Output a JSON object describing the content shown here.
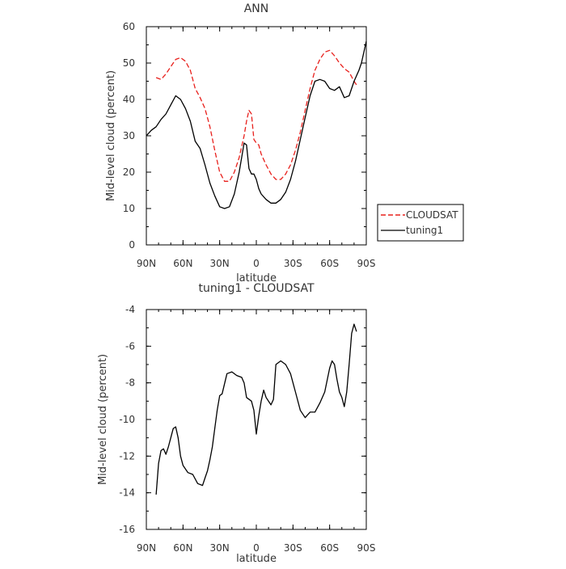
{
  "chart_data": [
    {
      "type": "line",
      "title": "ANN",
      "xlabel": "latitude",
      "ylabel": "Mid-level cloud (percent)",
      "xlim": [
        90,
        -90
      ],
      "ylim": [
        0,
        60
      ],
      "x_ticks": [
        90,
        60,
        30,
        0,
        -30,
        -60,
        -90
      ],
      "x_tick_labels": [
        "90N",
        "60N",
        "30N",
        "0",
        "30S",
        "60S",
        "90S"
      ],
      "y_ticks": [
        0,
        10,
        20,
        30,
        40,
        50,
        60
      ],
      "y_tick_labels": [
        "0",
        "10",
        "20",
        "30",
        "40",
        "50",
        "60"
      ],
      "grid": false,
      "legend": {
        "placement": "right",
        "entries": [
          "CLOUDSAT",
          "tuning1"
        ]
      },
      "series": [
        {
          "name": "CLOUDSAT",
          "color": "#e8201c",
          "dash": "dashed",
          "x": [
            82,
            78,
            74,
            70,
            66,
            62,
            58,
            54,
            50,
            46,
            42,
            38,
            34,
            30,
            26,
            22,
            18,
            14,
            10,
            8,
            6,
            4,
            2,
            0,
            -2,
            -4,
            -8,
            -12,
            -16,
            -20,
            -24,
            -28,
            -32,
            -36,
            -40,
            -44,
            -48,
            -52,
            -56,
            -60,
            -64,
            -68,
            -72,
            -76,
            -80,
            -82
          ],
          "y": [
            46,
            45.5,
            47,
            49,
            51,
            51.5,
            50.5,
            48,
            43,
            40.5,
            37.5,
            32.5,
            26,
            20,
            17.5,
            17.5,
            20,
            24,
            30,
            34,
            37,
            36,
            29,
            28,
            27.5,
            25,
            22,
            19.5,
            18,
            18,
            19.5,
            22,
            26,
            31,
            37,
            43,
            48,
            51,
            53,
            53.5,
            52,
            50,
            48.5,
            47.5,
            45,
            44
          ]
        },
        {
          "name": "tuning1",
          "color": "#000000",
          "dash": "solid",
          "x": [
            90,
            86,
            82,
            78,
            74,
            70,
            66,
            62,
            58,
            54,
            50,
            46,
            42,
            38,
            34,
            30,
            26,
            22,
            18,
            14,
            10,
            8,
            6,
            4,
            2,
            0,
            -2,
            -4,
            -8,
            -12,
            -16,
            -20,
            -24,
            -28,
            -32,
            -36,
            -40,
            -44,
            -48,
            -52,
            -56,
            -60,
            -64,
            -68,
            -72,
            -76,
            -80,
            -84,
            -86,
            -88,
            -90
          ],
          "y": [
            30,
            31.5,
            32.5,
            34.5,
            36,
            38.5,
            41,
            40,
            37.5,
            34,
            28.5,
            26.5,
            22,
            17,
            13.5,
            10.5,
            10,
            10.5,
            14,
            20,
            28,
            27.5,
            21,
            19.5,
            19.5,
            18,
            15.5,
            14,
            12.5,
            11.5,
            11.5,
            12.5,
            14.5,
            18,
            23,
            29,
            35,
            41,
            45,
            45.5,
            45,
            43,
            42.5,
            43.5,
            40.5,
            41,
            45,
            48,
            50,
            53,
            56
          ]
        }
      ]
    },
    {
      "type": "line",
      "title": "tuning1 - CLOUDSAT",
      "xlabel": "latitude",
      "ylabel": "Mid-level cloud (percent)",
      "xlim": [
        90,
        -90
      ],
      "ylim": [
        -16,
        -4
      ],
      "x_ticks": [
        90,
        60,
        30,
        0,
        -30,
        -60,
        -90
      ],
      "x_tick_labels": [
        "90N",
        "60N",
        "30N",
        "0",
        "30S",
        "60S",
        "90S"
      ],
      "y_ticks": [
        -16,
        -14,
        -12,
        -10,
        -8,
        -6,
        -4
      ],
      "y_tick_labels": [
        "-16",
        "-14",
        "-12",
        "-10",
        "-8",
        "-6",
        "-4"
      ],
      "grid": false,
      "series": [
        {
          "color": "#000000",
          "dash": "solid",
          "x": [
            82,
            80,
            78,
            76,
            74,
            72,
            70,
            68,
            66,
            64,
            62,
            60,
            56,
            52,
            48,
            44,
            42,
            40,
            38,
            36,
            34,
            32,
            30,
            28,
            24,
            20,
            16,
            12,
            10,
            8,
            4,
            2,
            0,
            -2,
            -4,
            -6,
            -8,
            -12,
            -14,
            -16,
            -20,
            -24,
            -28,
            -32,
            -36,
            -40,
            -44,
            -48,
            -52,
            -56,
            -60,
            -62,
            -64,
            -66,
            -68,
            -70,
            -72,
            -74,
            -76,
            -78,
            -80,
            -82
          ],
          "y": [
            -14.1,
            -12.4,
            -11.7,
            -11.6,
            -11.9,
            -11.5,
            -11.0,
            -10.5,
            -10.4,
            -11.0,
            -12.0,
            -12.5,
            -12.9,
            -13.0,
            -13.5,
            -13.6,
            -13.2,
            -12.8,
            -12.2,
            -11.5,
            -10.5,
            -9.5,
            -8.7,
            -8.6,
            -7.5,
            -7.4,
            -7.6,
            -7.7,
            -8.0,
            -8.8,
            -9.0,
            -9.5,
            -10.8,
            -9.8,
            -9.0,
            -8.4,
            -8.8,
            -9.2,
            -8.9,
            -7.0,
            -6.8,
            -7.0,
            -7.5,
            -8.5,
            -9.5,
            -9.9,
            -9.6,
            -9.6,
            -9.1,
            -8.5,
            -7.2,
            -6.8,
            -7.0,
            -7.8,
            -8.5,
            -8.8,
            -9.3,
            -8.5,
            -7.0,
            -5.3,
            -4.8,
            -5.2
          ]
        }
      ]
    }
  ]
}
